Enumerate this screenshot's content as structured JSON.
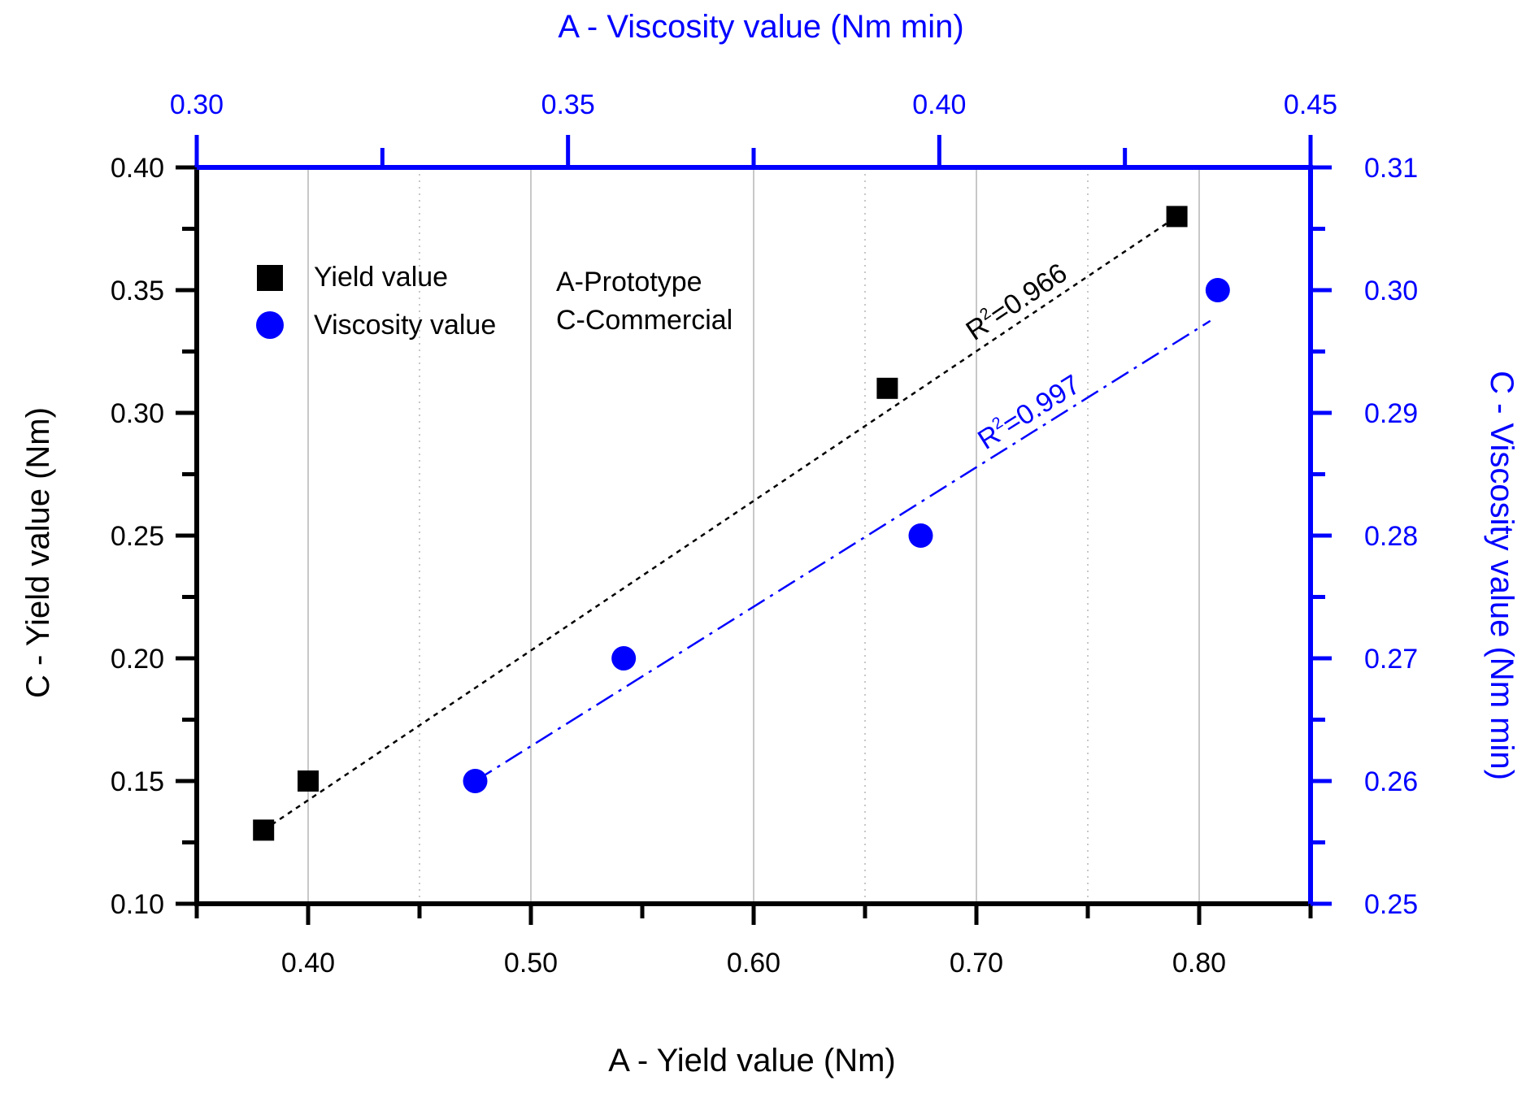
{
  "chart_data": {
    "type": "scatter",
    "colors": {
      "yield": "#000000",
      "viscosity": "#0000ff",
      "grid": "#c8c8c8"
    },
    "axes": {
      "bottom": {
        "label": "A - Yield value (Nm)",
        "range": [
          0.35,
          0.85
        ],
        "ticks": [
          {
            "value": 0.4,
            "label": "0.40"
          },
          {
            "value": 0.5,
            "label": "0.50"
          },
          {
            "value": 0.6,
            "label": "0.60"
          },
          {
            "value": 0.7,
            "label": "0.70"
          },
          {
            "value": 0.8,
            "label": "0.80"
          }
        ],
        "minor_ticks": [
          0.35,
          0.45,
          0.55,
          0.65,
          0.75,
          0.85
        ]
      },
      "left": {
        "label": "C - Yield value (Nm)",
        "range": [
          0.1,
          0.4
        ],
        "ticks": [
          {
            "value": 0.1,
            "label": "0.10"
          },
          {
            "value": 0.15,
            "label": "0.15"
          },
          {
            "value": 0.2,
            "label": "0.20"
          },
          {
            "value": 0.25,
            "label": "0.25"
          },
          {
            "value": 0.3,
            "label": "0.30"
          },
          {
            "value": 0.35,
            "label": "0.35"
          },
          {
            "value": 0.4,
            "label": "0.40"
          }
        ],
        "minor_ticks": [
          0.125,
          0.175,
          0.225,
          0.275,
          0.325,
          0.375
        ]
      },
      "top": {
        "label": "A - Viscosity value (Nm min)",
        "range": [
          0.3,
          0.45
        ],
        "ticks": [
          {
            "value": 0.3,
            "label": "0.30"
          },
          {
            "value": 0.35,
            "label": "0.35"
          },
          {
            "value": 0.4,
            "label": "0.40"
          },
          {
            "value": 0.45,
            "label": "0.45"
          }
        ],
        "minor_ticks": [
          0.325,
          0.375,
          0.425
        ]
      },
      "right": {
        "label": "C - Viscosity value (Nm min)",
        "range": [
          0.25,
          0.31
        ],
        "ticks": [
          {
            "value": 0.25,
            "label": "0.25"
          },
          {
            "value": 0.26,
            "label": "0.26"
          },
          {
            "value": 0.27,
            "label": "0.27"
          },
          {
            "value": 0.28,
            "label": "0.28"
          },
          {
            "value": 0.29,
            "label": "0.29"
          },
          {
            "value": 0.3,
            "label": "0.30"
          },
          {
            "value": 0.31,
            "label": "0.31"
          }
        ],
        "minor_ticks": [
          0.255,
          0.265,
          0.275,
          0.285,
          0.295,
          0.305
        ]
      }
    },
    "grid": {
      "solid_x": [
        0.4,
        0.5,
        0.6,
        0.7,
        0.8
      ],
      "dotted_x": [
        0.45,
        0.65,
        0.75
      ]
    },
    "series": [
      {
        "name": "Yield value",
        "marker": "square",
        "x_axis": "bottom",
        "y_axis": "left",
        "points": [
          {
            "x": 0.38,
            "y": 0.13
          },
          {
            "x": 0.4,
            "y": 0.15
          },
          {
            "x": 0.66,
            "y": 0.31
          },
          {
            "x": 0.79,
            "y": 0.38
          }
        ],
        "fit": {
          "r2_label": "R",
          "r2_sup": "2",
          "r2_value": "=0.966",
          "from": [
            0.38,
            0.13
          ],
          "to": [
            0.79,
            0.38
          ],
          "style": "dotted"
        }
      },
      {
        "name": "Viscosity value",
        "marker": "circle",
        "x_axis": "top",
        "y_axis": "right",
        "points": [
          {
            "x": 0.3375,
            "y": 0.26
          },
          {
            "x": 0.3575,
            "y": 0.27
          },
          {
            "x": 0.3975,
            "y": 0.28
          },
          {
            "x": 0.4375,
            "y": 0.3
          }
        ],
        "fit": {
          "r2_label": "R",
          "r2_sup": "2",
          "r2_value": "=0.997",
          "from": [
            0.3375,
            0.26
          ],
          "to": [
            0.4365,
            0.2975
          ],
          "style": "dashdot"
        }
      }
    ],
    "legend": {
      "entries": [
        {
          "label": "Yield value",
          "marker": "square"
        },
        {
          "label": "Viscosity value",
          "marker": "circle"
        }
      ],
      "notes": [
        "A-Prototype",
        "C-Commercial"
      ],
      "position": "top-left"
    }
  }
}
